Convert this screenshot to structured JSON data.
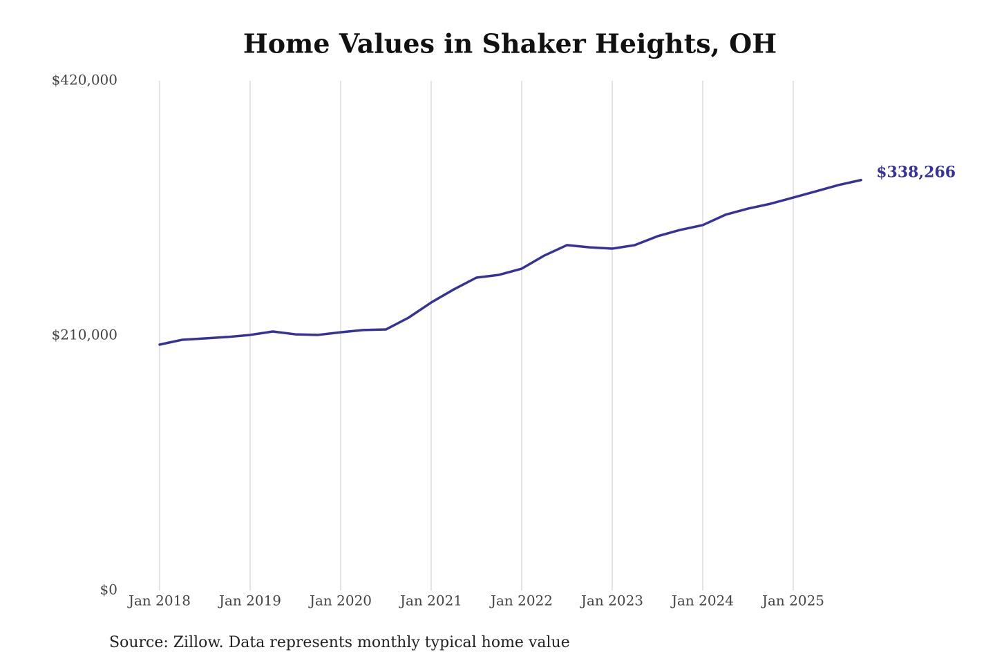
{
  "chart_data": {
    "type": "line",
    "title": "Home Values in Shaker Heights, OH",
    "source": "Source: Zillow. Data represents monthly typical home value",
    "categories": [
      "Jan 2018",
      "Apr 2018",
      "Jul 2018",
      "Oct 2018",
      "Jan 2019",
      "Apr 2019",
      "Jul 2019",
      "Oct 2019",
      "Jan 2020",
      "Apr 2020",
      "Jul 2020",
      "Oct 2020",
      "Jan 2021",
      "Apr 2021",
      "Jul 2021",
      "Oct 2021",
      "Jan 2022",
      "Apr 2022",
      "Jul 2022",
      "Oct 2022",
      "Jan 2023",
      "Apr 2023",
      "Jul 2023",
      "Oct 2023",
      "Jan 2024",
      "Apr 2024",
      "Jul 2024",
      "Oct 2024",
      "Jan 2025",
      "Apr 2025",
      "Jul 2025",
      "Oct 2025"
    ],
    "series": [
      {
        "name": "Typical home value",
        "color": "#37319a",
        "values": [
          202600,
          206600,
          207700,
          208900,
          210600,
          213400,
          211100,
          210600,
          212800,
          214600,
          215100,
          224800,
          237300,
          248100,
          257800,
          260100,
          265200,
          276000,
          284600,
          282800,
          281700,
          284600,
          291900,
          297100,
          301100,
          309600,
          314700,
          318700,
          323800,
          328900,
          334100,
          338266
        ]
      }
    ],
    "annotation": "$338,266",
    "ylim": [
      0,
      420000
    ],
    "yticks": [
      {
        "value": 0,
        "label": "$0"
      },
      {
        "value": 210000,
        "label": "$210,000"
      },
      {
        "value": 420000,
        "label": "$420,000"
      }
    ],
    "grid": true
  }
}
